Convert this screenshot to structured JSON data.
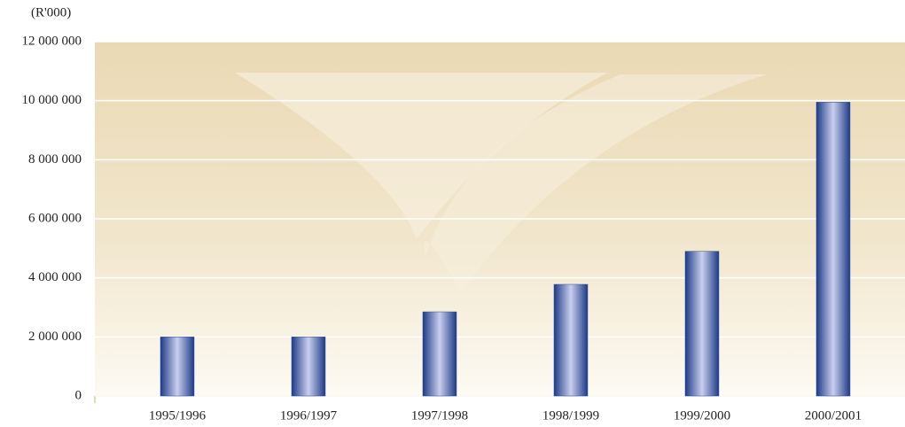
{
  "chart_data": {
    "type": "bar",
    "y_label": "(R'000)",
    "categories": [
      "1995/1996",
      "1996/1997",
      "1997/1998",
      "1998/1999",
      "1999/2000",
      "2000/2001"
    ],
    "values": [
      2000000,
      2000000,
      2850000,
      3780000,
      4900000,
      9950000
    ],
    "color": "#2b4a94",
    "ylim": [
      0,
      12000000
    ],
    "yticks": [
      0,
      {
        "value": 2000000,
        "label": "2 000 000"
      },
      {
        "value": 4000000,
        "label": "4 000 000"
      },
      {
        "value": 6000000,
        "label": "6 000 000"
      },
      {
        "value": 8000000,
        "label": "8 000 000"
      },
      {
        "value": 10000000,
        "label": "10 000 000"
      },
      {
        "value": 12000000,
        "label": "12 000 000"
      }
    ],
    "grid": true
  }
}
